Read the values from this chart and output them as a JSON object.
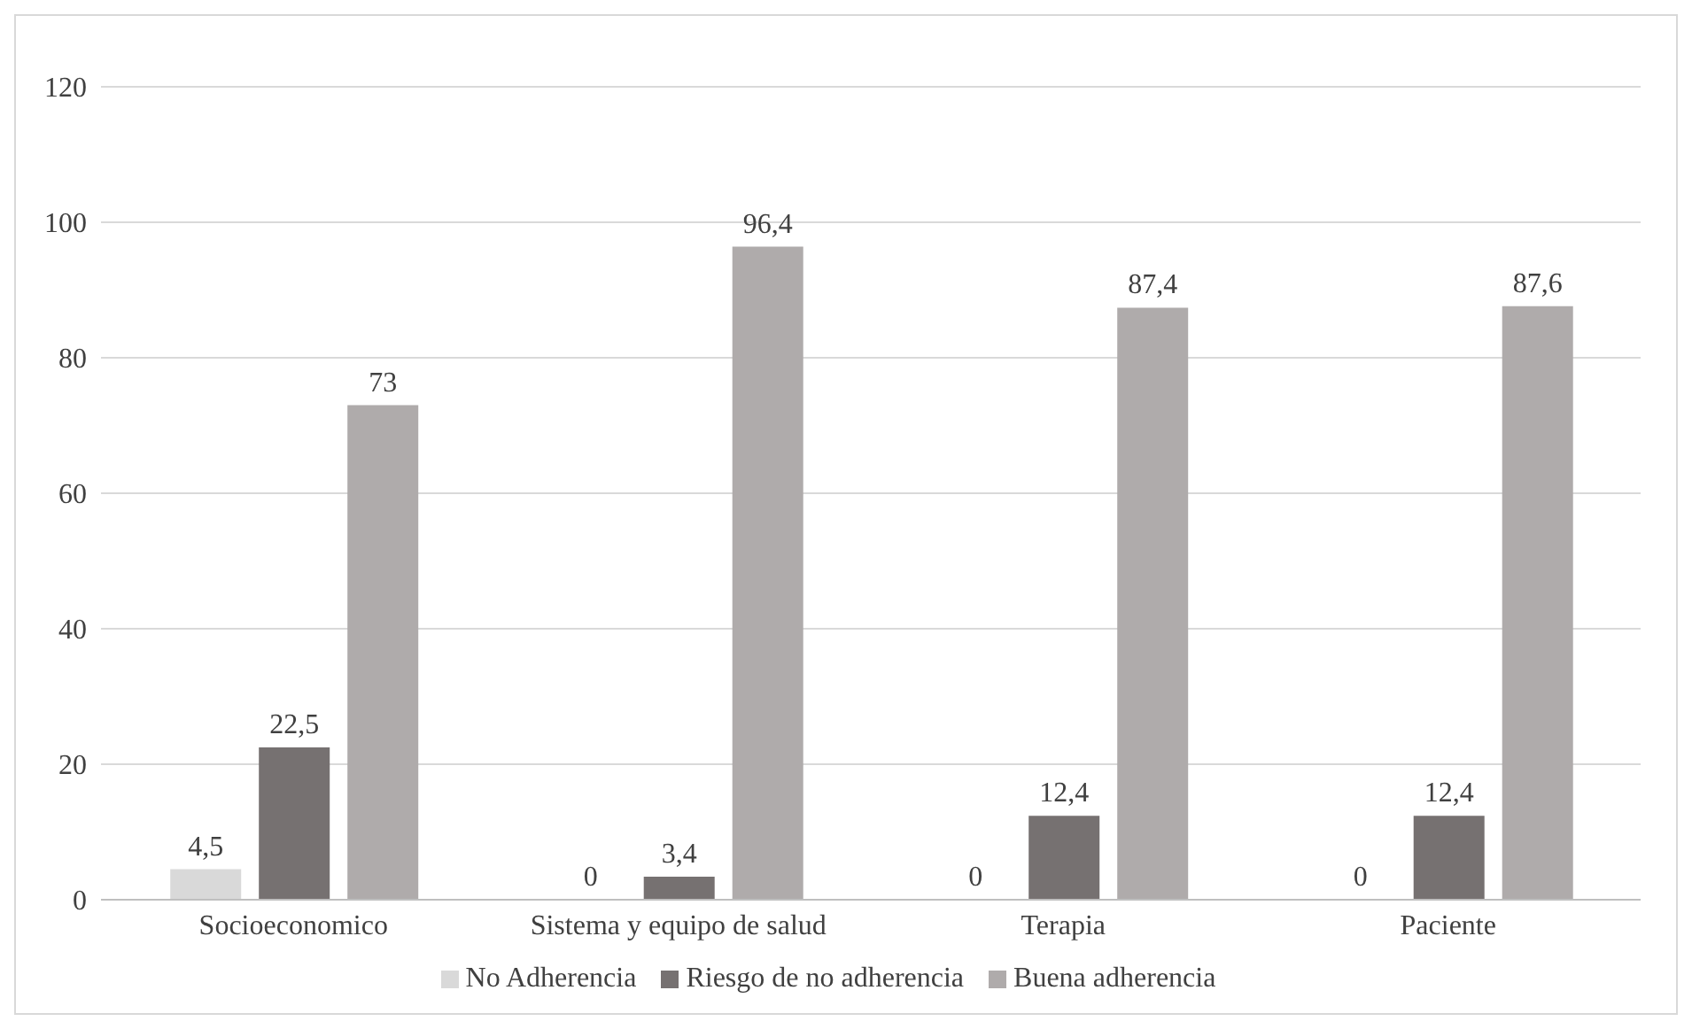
{
  "chart_data": {
    "type": "bar",
    "categories": [
      "Socioeconomico",
      "Sistema y equipo de salud",
      "Terapia",
      "Paciente"
    ],
    "series": [
      {
        "name": "No Adherencia",
        "color": "#d9d9d9",
        "values": [
          4.5,
          0,
          0,
          0
        ],
        "value_labels": [
          "4,5",
          "0",
          "0",
          "0"
        ]
      },
      {
        "name": "Riesgo de no adherencia",
        "color": "#767171",
        "values": [
          22.5,
          3.4,
          12.4,
          12.4
        ],
        "value_labels": [
          "22,5",
          "3,4",
          "12,4",
          "12,4"
        ]
      },
      {
        "name": "Buena adherencia",
        "color": "#afabab",
        "values": [
          73,
          96.4,
          87.4,
          87.6
        ],
        "value_labels": [
          "73",
          "96,4",
          "87,4",
          "87,6"
        ]
      }
    ],
    "ylim": [
      0,
      120
    ],
    "yticks": [
      0,
      20,
      40,
      60,
      80,
      100,
      120
    ],
    "grid": "y",
    "legend": "bottom"
  }
}
